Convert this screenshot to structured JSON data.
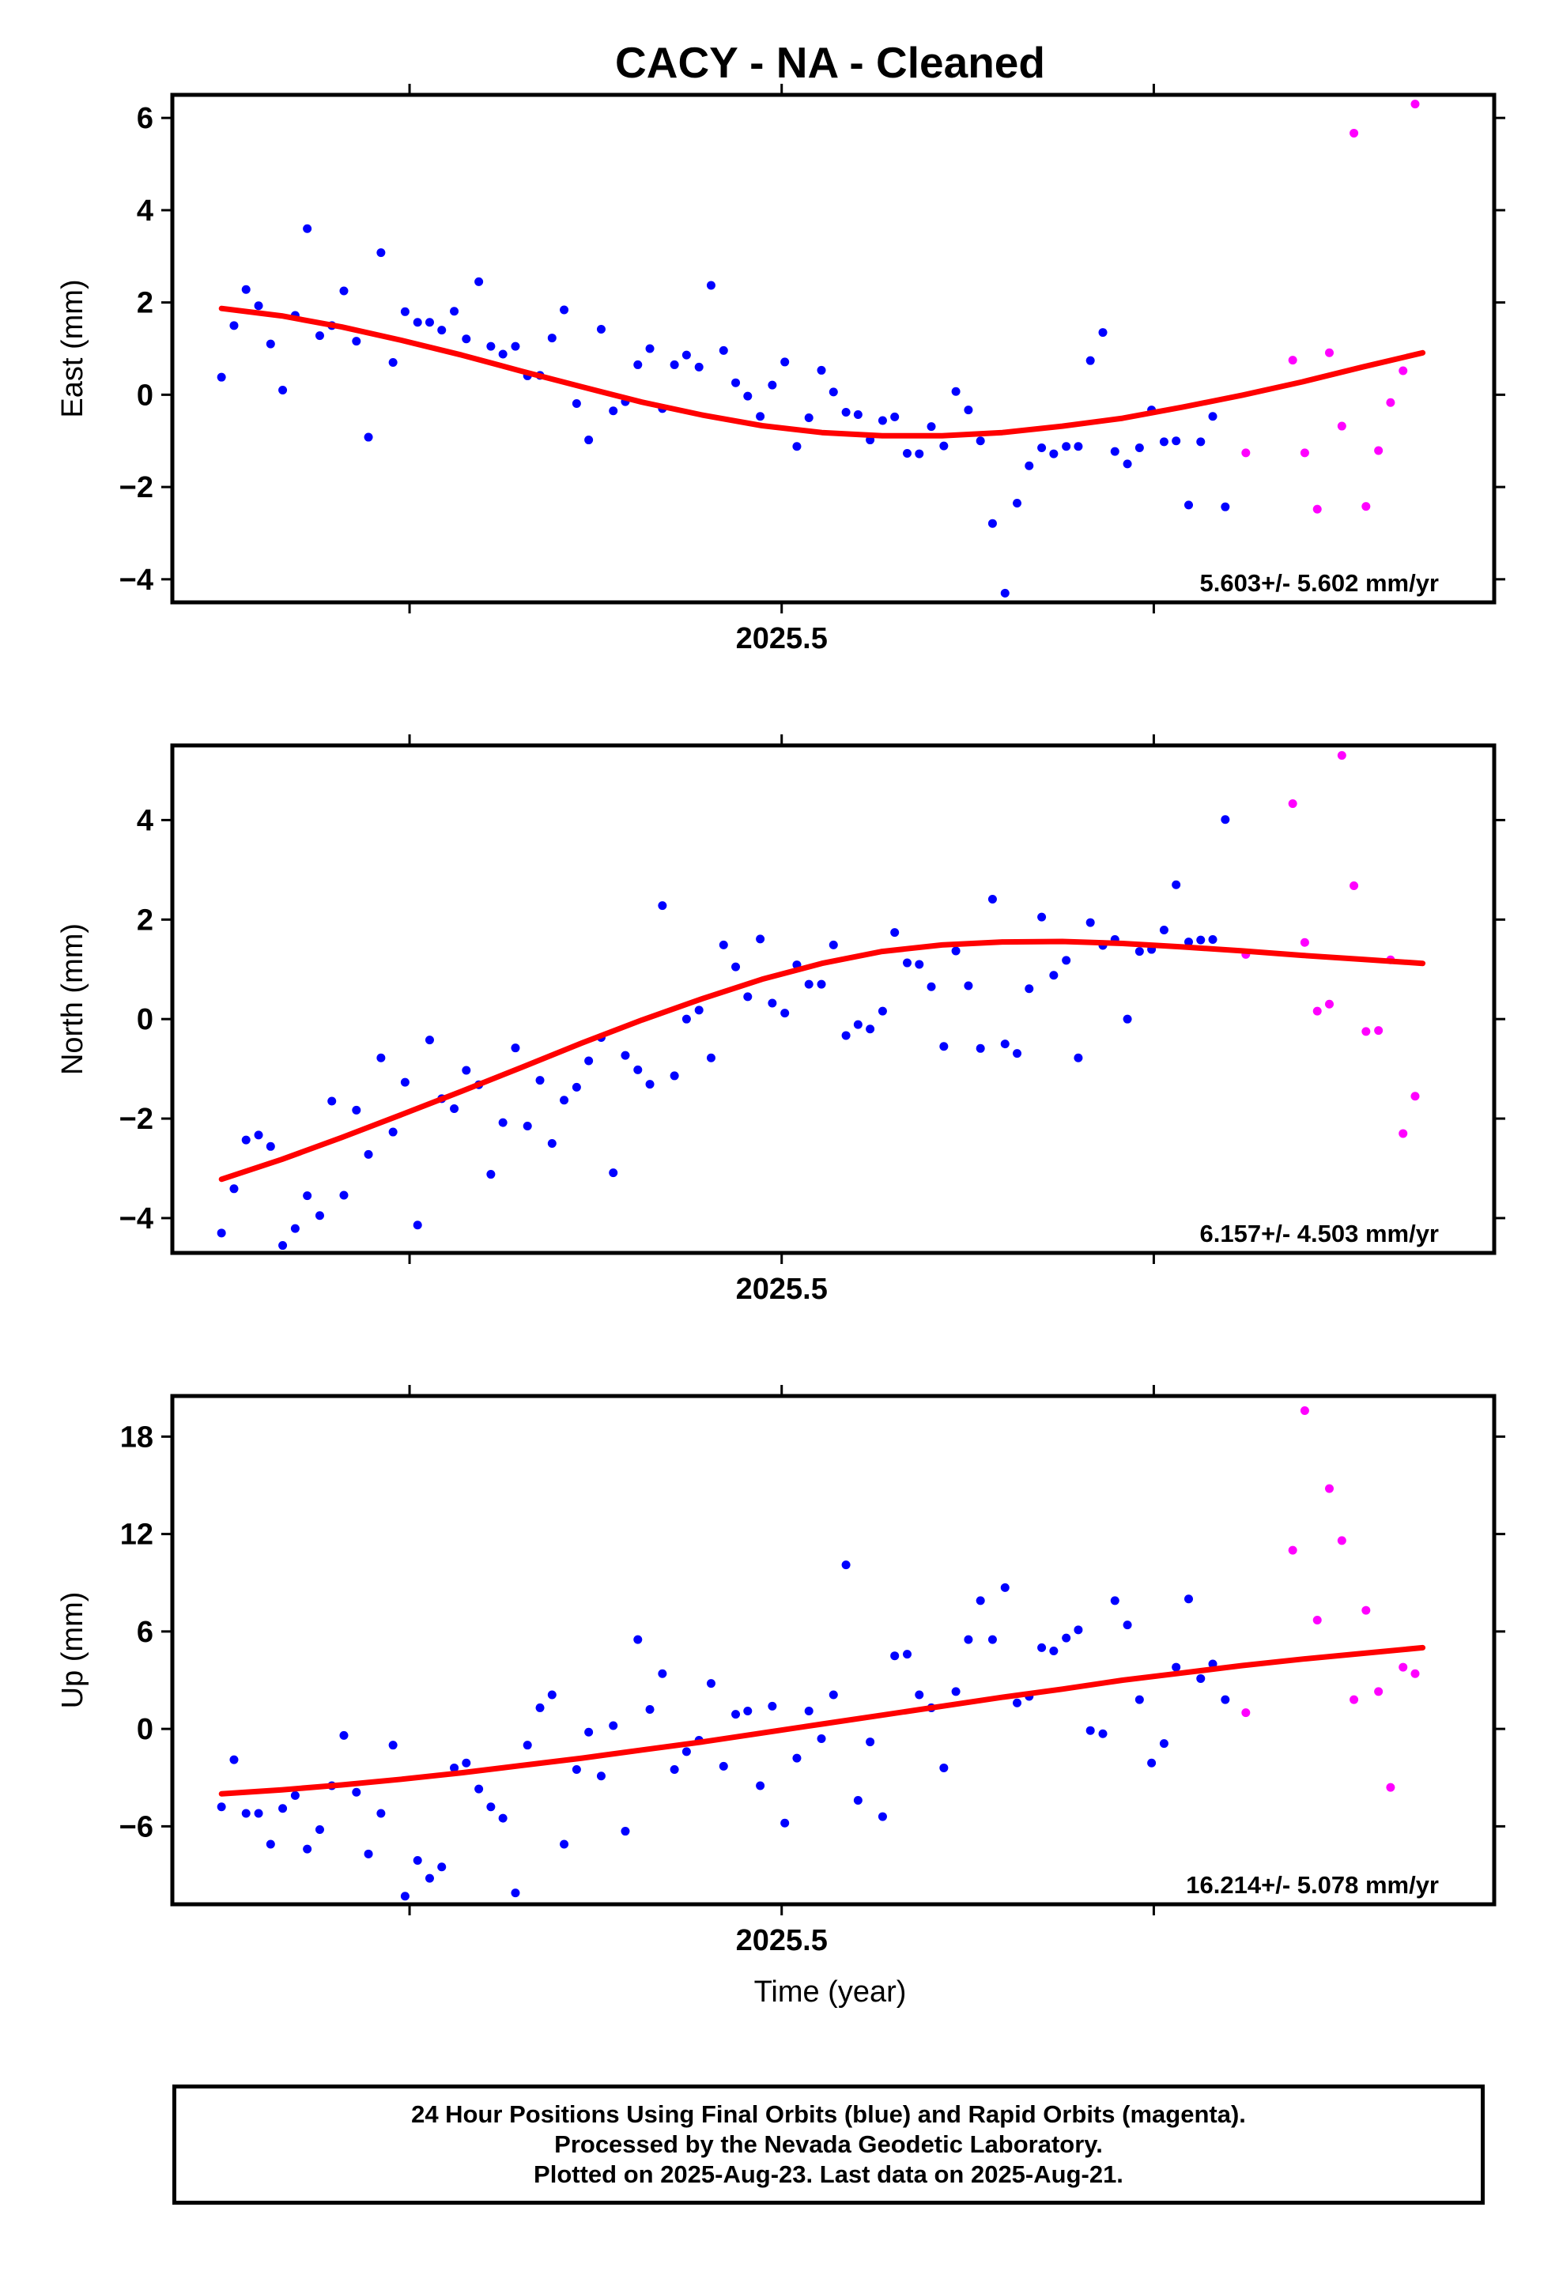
{
  "title": "CACY  - NA - Cleaned",
  "xlabel": "Time (year)",
  "colors": {
    "final": "#0000ff",
    "rapid": "#ff00ff",
    "fit": "#ff0000",
    "axes": "#000000"
  },
  "caption": {
    "line1": "24 Hour Positions Using Final Orbits (blue) and Rapid Orbits (magenta).",
    "line2": "Processed by the Nevada Geodetic Laboratory.",
    "line3": "Plotted on 2025-Aug-23. Last data on 2025-Aug-21."
  },
  "chart_data": [
    {
      "type": "scatter",
      "panel": "east",
      "ylabel": "East (mm)",
      "xlim": [
        2025.3636,
        2025.6595
      ],
      "ylim": [
        -4.5,
        6.5
      ],
      "yticks": [
        -4,
        -2,
        0,
        2,
        4,
        6
      ],
      "xticks_major": [
        {
          "value": 2025.5,
          "label": "2025.5"
        }
      ],
      "xticks_minor": [
        2025.4167,
        2025.5833
      ],
      "rate_label": "5.603+/- 5.602 mm/yr",
      "series": [
        {
          "name": "Final Orbits",
          "color": "final",
          "x": [
            2025.3746,
            2025.3774,
            2025.3801,
            2025.3829,
            2025.3856,
            2025.3883,
            2025.3911,
            2025.3938,
            2025.3966,
            2025.3993,
            2025.402,
            2025.4048,
            2025.4075,
            2025.4103,
            2025.413,
            2025.4157,
            2025.4185,
            2025.4212,
            2025.4239,
            2025.4267,
            2025.4294,
            2025.4322,
            2025.4349,
            2025.4376,
            2025.4404,
            2025.4431,
            2025.4459,
            2025.4486,
            2025.4513,
            2025.4541,
            2025.4568,
            2025.4596,
            2025.4623,
            2025.465,
            2025.4678,
            2025.4705,
            2025.4733,
            2025.476,
            2025.4787,
            2025.4815,
            2025.4842,
            2025.487,
            2025.4897,
            2025.4924,
            2025.4952,
            2025.4979,
            2025.5007,
            2025.5034,
            2025.5061,
            2025.5089,
            2025.5116,
            2025.5144,
            2025.5171,
            2025.5198,
            2025.5226,
            2025.5253,
            2025.5281,
            2025.5308,
            2025.5335,
            2025.5363,
            2025.539,
            2025.5418,
            2025.5445,
            2025.5472,
            2025.55,
            2025.5527,
            2025.5554,
            2025.5582,
            2025.5609,
            2025.5637,
            2025.5664,
            2025.5691,
            2025.5719,
            2025.5746,
            2025.5774,
            2025.5801,
            2025.5828,
            2025.5856,
            2025.5883,
            2025.5911,
            2025.5938,
            2025.5965,
            2025.5993
          ],
          "y": [
            0.38,
            1.5,
            2.28,
            1.93,
            1.1,
            0.1,
            1.72,
            3.6,
            1.28,
            1.5,
            2.25,
            1.16,
            -0.92,
            3.08,
            0.7,
            1.8,
            1.57,
            1.57,
            1.4,
            1.81,
            1.21,
            2.45,
            1.05,
            0.88,
            1.05,
            0.41,
            0.42,
            1.23,
            1.84,
            -0.19,
            -0.98,
            1.42,
            -0.35,
            -0.15,
            0.65,
            1.0,
            -0.3,
            0.65,
            0.86,
            0.6,
            2.37,
            0.96,
            0.26,
            -0.03,
            -0.47,
            0.21,
            0.71,
            -1.12,
            -0.5,
            0.53,
            0.06,
            -0.38,
            -0.43,
            -0.98,
            -0.56,
            -0.48,
            -1.27,
            -1.28,
            -0.69,
            -1.11,
            0.07,
            -0.33,
            -1.0,
            -2.79,
            -4.3,
            -2.35,
            -1.54,
            -1.15,
            -1.28,
            -1.12,
            -1.12,
            0.74,
            1.35,
            -1.23,
            -1.5,
            -1.15,
            -0.33,
            -1.02,
            -1.0,
            -2.39,
            -1.02,
            -0.47,
            -2.43
          ]
        },
        {
          "name": "Rapid Orbits",
          "color": "rapid",
          "x": [
            2025.6039,
            2025.6144,
            2025.6171,
            2025.6199,
            2025.6226,
            2025.6254,
            2025.6281,
            2025.6308,
            2025.6336,
            2025.6363,
            2025.6391,
            2025.6418
          ],
          "y": [
            -1.26,
            0.75,
            -1.26,
            -2.48,
            0.91,
            -0.68,
            5.67,
            -2.42,
            -1.21,
            -0.17,
            0.52,
            6.3
          ]
        }
      ],
      "fit": {
        "name": "fit",
        "color": "fit",
        "x": [
          2025.3746,
          2025.3881,
          2025.4015,
          2025.4149,
          2025.4284,
          2025.4418,
          2025.4553,
          2025.4687,
          2025.4822,
          2025.4956,
          2025.509,
          2025.5225,
          2025.5359,
          2025.5494,
          2025.5628,
          2025.5763,
          2025.5897,
          2025.6031,
          2025.6166,
          2025.63,
          2025.6435
        ],
        "y": [
          1.87,
          1.71,
          1.47,
          1.18,
          0.86,
          0.51,
          0.17,
          -0.16,
          -0.44,
          -0.67,
          -0.82,
          -0.89,
          -0.89,
          -0.82,
          -0.68,
          -0.51,
          -0.27,
          -0.01,
          0.28,
          0.6,
          0.91
        ]
      }
    },
    {
      "type": "scatter",
      "panel": "north",
      "ylabel": "North (mm)",
      "xlim": [
        2025.3636,
        2025.6595
      ],
      "ylim": [
        -4.7,
        5.5
      ],
      "yticks": [
        -4,
        -2,
        0,
        2,
        4
      ],
      "xticks_major": [
        {
          "value": 2025.5,
          "label": "2025.5"
        }
      ],
      "xticks_minor": [
        2025.4167,
        2025.5833
      ],
      "rate_label": "6.157+/- 4.503 mm/yr",
      "series": [
        {
          "name": "Final Orbits",
          "color": "final",
          "x": [
            2025.3746,
            2025.3774,
            2025.3801,
            2025.3829,
            2025.3856,
            2025.3883,
            2025.3911,
            2025.3938,
            2025.3966,
            2025.3993,
            2025.402,
            2025.4048,
            2025.4075,
            2025.4103,
            2025.413,
            2025.4157,
            2025.4185,
            2025.4212,
            2025.4239,
            2025.4267,
            2025.4294,
            2025.4322,
            2025.4349,
            2025.4376,
            2025.4404,
            2025.4431,
            2025.4459,
            2025.4486,
            2025.4513,
            2025.4541,
            2025.4568,
            2025.4596,
            2025.4623,
            2025.465,
            2025.4678,
            2025.4705,
            2025.4733,
            2025.476,
            2025.4787,
            2025.4815,
            2025.4842,
            2025.487,
            2025.4897,
            2025.4924,
            2025.4952,
            2025.4979,
            2025.5007,
            2025.5034,
            2025.5061,
            2025.5089,
            2025.5116,
            2025.5144,
            2025.5171,
            2025.5198,
            2025.5226,
            2025.5253,
            2025.5281,
            2025.5308,
            2025.5335,
            2025.5363,
            2025.539,
            2025.5418,
            2025.5445,
            2025.5472,
            2025.55,
            2025.5527,
            2025.5554,
            2025.5582,
            2025.5609,
            2025.5637,
            2025.5664,
            2025.5691,
            2025.5719,
            2025.5746,
            2025.5774,
            2025.5801,
            2025.5828,
            2025.5856,
            2025.5883,
            2025.5911,
            2025.5938,
            2025.5965,
            2025.5993
          ],
          "y": [
            -4.3,
            -3.41,
            -2.43,
            -2.33,
            -2.56,
            -4.55,
            -4.21,
            -3.55,
            -3.95,
            -1.65,
            -3.54,
            -1.83,
            -2.72,
            -0.78,
            -2.27,
            -1.27,
            -4.14,
            -0.42,
            -1.6,
            -1.8,
            -1.03,
            -1.32,
            -3.12,
            -2.08,
            -0.58,
            -2.15,
            -1.23,
            -2.5,
            -1.63,
            -1.37,
            -0.84,
            -0.37,
            -3.09,
            -0.73,
            -1.02,
            -1.31,
            2.28,
            -1.14,
            0.0,
            0.18,
            -0.78,
            1.49,
            1.05,
            0.45,
            1.61,
            0.32,
            0.12,
            1.09,
            0.7,
            0.7,
            1.49,
            -0.33,
            -0.11,
            -0.2,
            0.16,
            1.74,
            1.13,
            1.1,
            0.65,
            -0.55,
            1.37,
            0.67,
            -0.59,
            2.41,
            -0.5,
            -0.69,
            0.61,
            2.05,
            0.88,
            1.18,
            -0.78,
            1.94,
            1.48,
            1.6,
            0.0,
            1.36,
            1.4,
            1.79,
            2.7,
            1.55,
            1.59,
            1.6,
            4.01
          ]
        },
        {
          "name": "Rapid Orbits",
          "color": "rapid",
          "x": [
            2025.6039,
            2025.6144,
            2025.6171,
            2025.6199,
            2025.6226,
            2025.6254,
            2025.6281,
            2025.6308,
            2025.6336,
            2025.6363,
            2025.6391,
            2025.6418
          ],
          "y": [
            1.3,
            4.33,
            1.54,
            0.16,
            0.3,
            5.3,
            2.68,
            -0.25,
            -0.23,
            1.19,
            -2.3,
            -1.55
          ]
        }
      ],
      "fit": {
        "name": "fit",
        "color": "fit",
        "x": [
          2025.3746,
          2025.3881,
          2025.4015,
          2025.4149,
          2025.4284,
          2025.4418,
          2025.4553,
          2025.4687,
          2025.4822,
          2025.4956,
          2025.509,
          2025.5225,
          2025.5359,
          2025.5494,
          2025.5628,
          2025.5763,
          2025.5897,
          2025.6031,
          2025.6166,
          2025.63,
          2025.6435
        ],
        "y": [
          -3.22,
          -2.82,
          -2.38,
          -1.92,
          -1.45,
          -0.97,
          -0.48,
          -0.02,
          0.41,
          0.8,
          1.12,
          1.36,
          1.49,
          1.55,
          1.56,
          1.52,
          1.45,
          1.37,
          1.28,
          1.2,
          1.12
        ]
      }
    },
    {
      "type": "scatter",
      "panel": "up",
      "ylabel": "Up (mm)",
      "xlim": [
        2025.3636,
        2025.6595
      ],
      "ylim": [
        -10.8,
        20.5
      ],
      "yticks": [
        -6,
        0,
        6,
        12,
        18
      ],
      "xticks_major": [
        {
          "value": 2025.5,
          "label": "2025.5"
        }
      ],
      "xticks_minor": [
        2025.4167,
        2025.5833
      ],
      "rate_label": "16.214+/- 5.078 mm/yr",
      "series": [
        {
          "name": "Final Orbits",
          "color": "final",
          "x": [
            2025.3746,
            2025.3774,
            2025.3801,
            2025.3829,
            2025.3856,
            2025.3883,
            2025.3911,
            2025.3938,
            2025.3966,
            2025.3993,
            2025.402,
            2025.4048,
            2025.4075,
            2025.4103,
            2025.413,
            2025.4157,
            2025.4185,
            2025.4212,
            2025.4239,
            2025.4267,
            2025.4294,
            2025.4322,
            2025.4349,
            2025.4376,
            2025.4404,
            2025.4431,
            2025.4459,
            2025.4486,
            2025.4513,
            2025.4541,
            2025.4568,
            2025.4596,
            2025.4623,
            2025.465,
            2025.4678,
            2025.4705,
            2025.4733,
            2025.476,
            2025.4787,
            2025.4815,
            2025.4842,
            2025.487,
            2025.4897,
            2025.4924,
            2025.4952,
            2025.4979,
            2025.5007,
            2025.5034,
            2025.5061,
            2025.5089,
            2025.5116,
            2025.5144,
            2025.5171,
            2025.5198,
            2025.5226,
            2025.5253,
            2025.5281,
            2025.5308,
            2025.5335,
            2025.5363,
            2025.539,
            2025.5418,
            2025.5445,
            2025.5472,
            2025.55,
            2025.5527,
            2025.5554,
            2025.5582,
            2025.5609,
            2025.5637,
            2025.5664,
            2025.5691,
            2025.5719,
            2025.5746,
            2025.5774,
            2025.5801,
            2025.5828,
            2025.5856,
            2025.5883,
            2025.5911,
            2025.5938,
            2025.5965,
            2025.5993
          ],
          "y": [
            -4.8,
            -1.9,
            -5.2,
            -5.2,
            -7.1,
            -4.9,
            -4.1,
            -7.4,
            -6.2,
            -3.5,
            -0.4,
            -3.9,
            -7.7,
            -5.2,
            -1.0,
            -10.3,
            -8.1,
            -9.2,
            -8.5,
            -2.4,
            -2.1,
            -3.7,
            -4.8,
            -5.5,
            -10.1,
            -1.0,
            1.3,
            2.1,
            -7.1,
            -2.5,
            -0.2,
            -2.9,
            0.2,
            -6.3,
            5.5,
            1.2,
            3.4,
            -2.5,
            -1.4,
            -0.7,
            2.8,
            -2.3,
            0.9,
            1.1,
            -3.5,
            1.4,
            -5.8,
            -1.8,
            1.1,
            -0.6,
            2.1,
            10.1,
            -4.4,
            -0.8,
            -5.4,
            4.5,
            4.6,
            2.1,
            1.3,
            -2.4,
            2.3,
            5.5,
            7.9,
            5.5,
            8.7,
            1.6,
            2.0,
            5.0,
            4.8,
            5.6,
            6.1,
            -0.1,
            -0.3,
            7.9,
            6.4,
            1.8,
            -2.1,
            -0.9,
            3.8,
            8.0,
            3.1,
            4.0,
            1.8
          ]
        },
        {
          "name": "Rapid Orbits",
          "color": "rapid",
          "x": [
            2025.6039,
            2025.6144,
            2025.6171,
            2025.6199,
            2025.6226,
            2025.6254,
            2025.6281,
            2025.6308,
            2025.6336,
            2025.6363,
            2025.6391,
            2025.6418
          ],
          "y": [
            1.0,
            11.0,
            19.6,
            6.7,
            14.8,
            11.6,
            1.8,
            7.3,
            2.3,
            -3.6,
            3.8,
            3.4
          ]
        }
      ],
      "fit": {
        "name": "fit",
        "color": "fit",
        "x": [
          2025.3746,
          2025.3881,
          2025.4015,
          2025.4149,
          2025.4284,
          2025.4418,
          2025.4553,
          2025.4687,
          2025.4822,
          2025.4956,
          2025.509,
          2025.5225,
          2025.5359,
          2025.5494,
          2025.5628,
          2025.5763,
          2025.5897,
          2025.6031,
          2025.6166,
          2025.63,
          2025.6435
        ],
        "y": [
          -4.0,
          -3.75,
          -3.45,
          -3.1,
          -2.7,
          -2.25,
          -1.8,
          -1.3,
          -0.8,
          -0.25,
          0.3,
          0.85,
          1.4,
          1.95,
          2.45,
          3.0,
          3.45,
          3.9,
          4.3,
          4.65,
          5.0
        ]
      }
    }
  ]
}
